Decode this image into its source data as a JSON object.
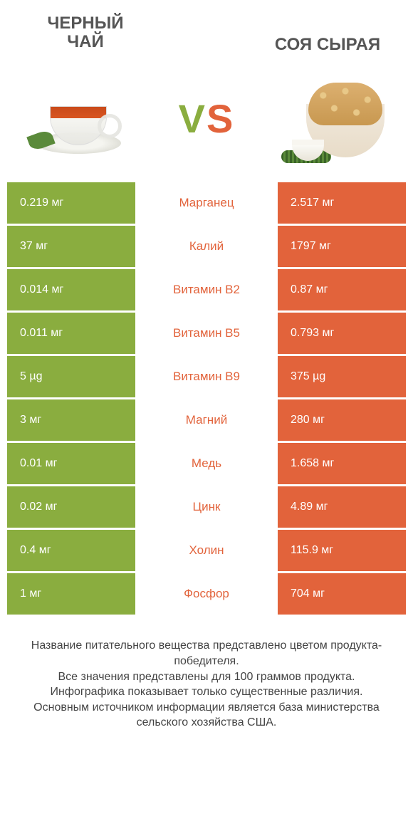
{
  "header": {
    "left_title": "ЧЕРНЫЙ\nЧАЙ",
    "right_title": "СОЯ СЫРАЯ",
    "vs_v": "V",
    "vs_s": "S"
  },
  "colors": {
    "left": "#8aad3f",
    "right": "#e2633b",
    "background": "#ffffff",
    "text": "#444444"
  },
  "table": {
    "rows": [
      {
        "left": "0.219 мг",
        "label": "Марганец",
        "right": "2.517 мг",
        "label_color": "#e2633b"
      },
      {
        "left": "37 мг",
        "label": "Калий",
        "right": "1797 мг",
        "label_color": "#e2633b"
      },
      {
        "left": "0.014 мг",
        "label": "Витамин B2",
        "right": "0.87 мг",
        "label_color": "#e2633b"
      },
      {
        "left": "0.011 мг",
        "label": "Витамин B5",
        "right": "0.793 мг",
        "label_color": "#e2633b"
      },
      {
        "left": "5 µg",
        "label": "Витамин B9",
        "right": "375 µg",
        "label_color": "#e2633b"
      },
      {
        "left": "3 мг",
        "label": "Магний",
        "right": "280 мг",
        "label_color": "#e2633b"
      },
      {
        "left": "0.01 мг",
        "label": "Медь",
        "right": "1.658 мг",
        "label_color": "#e2633b"
      },
      {
        "left": "0.02 мг",
        "label": "Цинк",
        "right": "4.89 мг",
        "label_color": "#e2633b"
      },
      {
        "left": "0.4 мг",
        "label": "Холин",
        "right": "115.9 мг",
        "label_color": "#e2633b"
      },
      {
        "left": "1 мг",
        "label": "Фосфор",
        "right": "704 мг",
        "label_color": "#e2633b"
      }
    ]
  },
  "footer": {
    "line1": "Название питательного вещества представлено цветом продукта-победителя.",
    "line2": "Все значения представлены для 100 граммов продукта.",
    "line3": "Инфографика показывает только существенные различия.",
    "line4": "Основным источником информации является база министерства сельского хозяйства США."
  }
}
